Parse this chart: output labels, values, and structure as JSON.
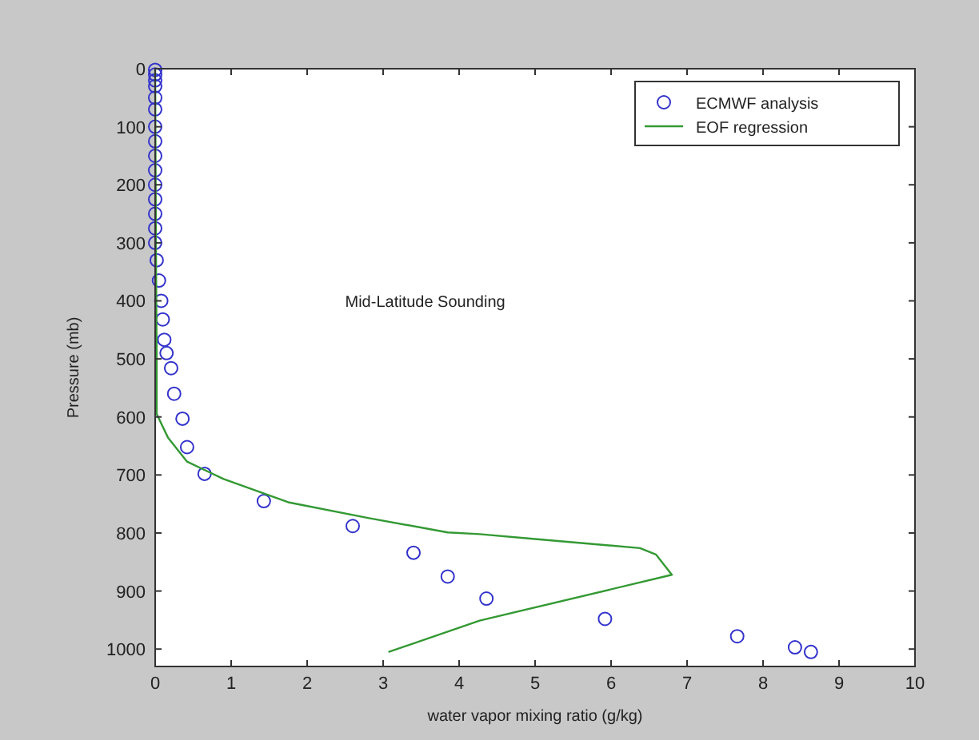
{
  "chart_data": {
    "type": "scatter",
    "xlabel": "water vapor mixing ratio (g/kg)",
    "ylabel": "Pressure (mb)",
    "annotations": [
      "Mid-Latitude Sounding"
    ],
    "xlim": [
      0,
      10
    ],
    "ylim": [
      1030,
      0
    ],
    "xticks": [
      0,
      1,
      2,
      3,
      4,
      5,
      6,
      7,
      8,
      9,
      10
    ],
    "yticks": [
      0,
      100,
      200,
      300,
      400,
      500,
      600,
      700,
      800,
      900,
      1000
    ],
    "legend": "top right",
    "grid": false,
    "series": [
      {
        "name": "ECMWF analysis",
        "marker": "circle",
        "color": "#3333cc",
        "x": [
          0,
          0,
          0,
          0,
          0,
          0,
          0,
          0,
          0,
          0,
          0,
          0,
          0,
          0,
          0,
          0.02,
          0.05,
          0.08,
          0.1,
          0.12,
          0.15,
          0.21,
          0.25,
          0.36,
          0.42,
          0.65,
          1.43,
          2.6,
          3.4,
          3.85,
          4.36,
          5.92,
          7.66,
          8.42,
          8.63
        ],
        "values": [
          2,
          10,
          20,
          30,
          50,
          70,
          100,
          125,
          150,
          175,
          200,
          225,
          250,
          275,
          300,
          330,
          365,
          400,
          432,
          467,
          490,
          516,
          560,
          603,
          652,
          698,
          745,
          788,
          834,
          875,
          913,
          948,
          978,
          997,
          1005
        ]
      },
      {
        "name": "EOF regression",
        "type": "line",
        "marker": "none",
        "line_style": "solid",
        "color": "#339933",
        "x": [
          0,
          0.01,
          0.02,
          0.02,
          0.17,
          0.42,
          0.9,
          1.75,
          2.8,
          3.85,
          4.27,
          4.97,
          6.38,
          6.59,
          6.8,
          4.27,
          3.07
        ],
        "values": [
          0,
          300,
          500,
          595,
          636,
          677,
          707,
          747,
          774,
          799,
          802,
          810,
          826,
          837,
          872,
          951,
          1005
        ]
      }
    ]
  }
}
